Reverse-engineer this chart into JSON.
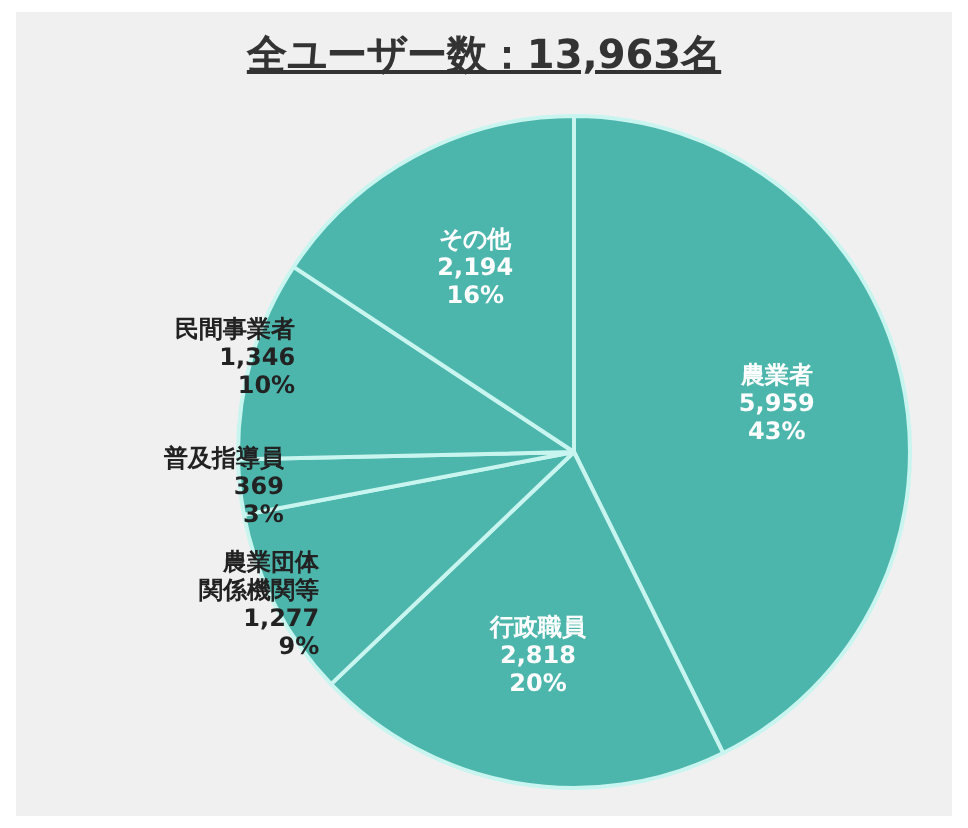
{
  "chart_data": {
    "type": "pie",
    "title": "全ユーザー数：13,963名",
    "categories": [
      "農業者",
      "行政職員",
      "農業団体関係機関等",
      "普及指導員",
      "民間事業者",
      "その他"
    ],
    "values": [
      5959,
      2818,
      1277,
      369,
      1346,
      2194
    ],
    "value_labels": [
      "5,959\n43%",
      "2,818\n20%",
      "1,277\n9%",
      "369\n3%",
      "1,346\n10%",
      "2,194\n16%"
    ],
    "colors": [
      "#4db6ac",
      "#4db6ac",
      "#4db6ac",
      "#4db6ac",
      "#4db6ac",
      "#4db6ac"
    ],
    "legend": false
  }
}
